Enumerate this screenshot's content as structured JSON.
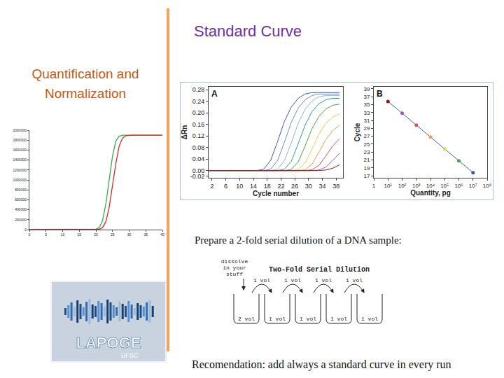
{
  "slide": {
    "title": "Standard Curve",
    "subtitle": [
      "Quantification and",
      "Normalization"
    ],
    "dilution": {
      "caption": "Prepare a 2-fold serial dilution of a DNA sample:",
      "note": [
        "dissolve",
        "in your",
        "stuff"
      ],
      "heading": "Two-Fold Serial Dilution",
      "transfers": [
        "1 vol",
        "1 vol",
        "1 vol",
        "1 vol"
      ],
      "tubes": [
        "2 vol",
        "1 vol",
        "1 vol",
        "1 vol",
        "1 vol"
      ]
    },
    "logo": {
      "name": "LAPOGE",
      "sub": "UFSC"
    },
    "recommendation": "Recomendation: add always a standard curve in every run"
  },
  "chart_data": [
    {
      "type": "line",
      "x": [
        0,
        1,
        2,
        3,
        4,
        5,
        6,
        7,
        8,
        9,
        10,
        11,
        12,
        13,
        14,
        15,
        16,
        17,
        18,
        19,
        20,
        21,
        22,
        23,
        24,
        25,
        26,
        27,
        28,
        29,
        30,
        31,
        32,
        33,
        34,
        35,
        36,
        37,
        38,
        39,
        40
      ],
      "series": [
        {
          "color": "#2fb34a",
          "values": [
            0,
            0,
            0,
            0,
            0,
            0,
            0,
            0,
            0,
            0,
            0,
            0,
            0,
            0,
            0,
            0,
            0,
            0,
            0,
            0,
            10000,
            40000,
            180000,
            520000,
            1000000,
            1480000,
            1780000,
            1880000,
            1900000,
            1900000,
            1900000,
            1900000,
            1900000,
            1900000,
            1900000,
            1900000,
            1900000,
            1900000,
            1900000,
            1900000,
            1900000
          ]
        },
        {
          "color": "#e0262b",
          "values": [
            0,
            0,
            0,
            0,
            0,
            0,
            0,
            0,
            0,
            0,
            0,
            0,
            0,
            0,
            0,
            0,
            0,
            0,
            0,
            0,
            0,
            10000,
            40000,
            160000,
            450000,
            880000,
            1330000,
            1680000,
            1840000,
            1890000,
            1900000,
            1900000,
            1900000,
            1900000,
            1900000,
            1900000,
            1900000,
            1900000,
            1900000,
            1900000,
            1900000
          ]
        }
      ],
      "xlim": [
        0,
        40
      ],
      "xticks": [
        0,
        5,
        10,
        15,
        20,
        25,
        30,
        35,
        40
      ],
      "ylim": [
        0,
        2000000
      ],
      "yticks": [
        0,
        200000,
        400000,
        600000,
        800000,
        1000000,
        1200000,
        1400000,
        1600000,
        1800000,
        2000000
      ],
      "grid": false
    },
    {
      "type": "line",
      "annotations": [
        "A"
      ],
      "xlabel": "Cycle number",
      "ylabel": "ΔRn",
      "x": [
        1,
        3,
        5,
        7,
        9,
        11,
        13,
        15,
        17,
        19,
        21,
        23,
        25,
        27,
        29,
        31,
        33,
        35,
        37,
        39
      ],
      "series": [
        {
          "color": "#3b5ba9",
          "values": [
            0,
            0,
            0,
            0,
            0,
            0,
            0,
            0,
            0.005,
            0.035,
            0.1,
            0.17,
            0.22,
            0.25,
            0.265,
            0.27,
            0.27,
            0.27,
            0.27,
            0.27
          ]
        },
        {
          "color": "#6a8fd0",
          "values": [
            0,
            0,
            0,
            0,
            0,
            0,
            0,
            0,
            0,
            0.005,
            0.034,
            0.098,
            0.167,
            0.216,
            0.245,
            0.26,
            0.265,
            0.265,
            0.265,
            0.265
          ]
        },
        {
          "color": "#8fb3e0",
          "values": [
            0,
            0,
            0,
            0,
            0,
            0,
            0,
            0,
            0,
            0,
            0.005,
            0.034,
            0.096,
            0.164,
            0.212,
            0.241,
            0.255,
            0.26,
            0.26,
            0.26
          ]
        },
        {
          "color": "#2aa198",
          "values": [
            0,
            0,
            0,
            0,
            0,
            0,
            0,
            0,
            0,
            0,
            0,
            0.005,
            0.032,
            0.093,
            0.157,
            0.204,
            0.231,
            0.245,
            0.25,
            0.25
          ]
        },
        {
          "color": "#44aa44",
          "values": [
            0,
            0,
            0,
            0,
            0,
            0,
            0,
            0,
            0,
            0,
            0,
            0,
            0.004,
            0.03,
            0.085,
            0.145,
            0.187,
            0.213,
            0.226,
            0.23
          ]
        },
        {
          "color": "#e8d44d",
          "values": [
            0,
            0,
            0,
            0,
            0,
            0,
            0,
            0,
            0,
            0,
            0,
            0,
            0,
            0.004,
            0.026,
            0.074,
            0.126,
            0.163,
            0.185,
            0.196
          ]
        },
        {
          "color": "#f0a040",
          "values": [
            0,
            0,
            0,
            0,
            0,
            0,
            0,
            0,
            0,
            0,
            0,
            0,
            0,
            0,
            0.003,
            0.022,
            0.063,
            0.107,
            0.138,
            0.157
          ]
        },
        {
          "color": "#d9534f",
          "values": [
            0,
            0,
            0,
            0,
            0,
            0,
            0,
            0,
            0,
            0,
            0,
            0,
            0,
            0,
            0,
            0.003,
            0.018,
            0.05,
            0.085,
            0.11
          ]
        },
        {
          "color": "#9b59b6",
          "values": [
            0,
            0,
            0,
            0,
            0,
            0,
            0,
            0,
            0,
            0,
            0,
            0,
            0,
            0,
            0,
            0,
            0.002,
            0.012,
            0.035,
            0.06
          ]
        },
        {
          "color": "#8b1a1a",
          "values": [
            0,
            0,
            0,
            0,
            0,
            0,
            0,
            0,
            0,
            0,
            0,
            0,
            0,
            0,
            0,
            0,
            0,
            0.002,
            0.008,
            0.02
          ]
        }
      ],
      "xlim": [
        1,
        40
      ],
      "xticks": [
        2,
        6,
        10,
        14,
        18,
        22,
        26,
        30,
        34,
        38
      ],
      "ylim": [
        -0.025,
        0.29
      ],
      "yticks": [
        -0.02,
        {
          "value": 0,
          "label": "0.00"
        },
        0.04,
        0.08,
        0.12,
        0.16,
        {
          "value": 0.2,
          "label": "0.20"
        },
        0.24,
        0.28
      ],
      "grid": false
    },
    {
      "type": "line",
      "annotations": [
        "B"
      ],
      "xlabel": "Quantity, pg",
      "ylabel": "Cycle",
      "log": "x",
      "x": [
        10,
        100,
        1000,
        10000,
        100000,
        1000000,
        10000000
      ],
      "series": [
        {
          "color": "#4a5f8a",
          "marker": "circle",
          "colors": [
            "#8b1a1a",
            "#9b59b6",
            "#d9534f",
            "#f0a040",
            "#e8d44d",
            "#44aa44",
            "#3b5ba9"
          ],
          "values": [
            35.8,
            32.8,
            29.8,
            26.8,
            23.8,
            20.8,
            17.8
          ]
        }
      ],
      "xlim": [
        1,
        100000000
      ],
      "xticks": [
        1,
        {
          "value": 10,
          "label": "10¹"
        },
        {
          "value": 100,
          "label": "10²"
        },
        {
          "value": 1000,
          "label": "10³"
        },
        {
          "value": 10000,
          "label": "10⁴"
        },
        {
          "value": 100000,
          "label": "10⁵"
        },
        {
          "value": 1000000,
          "label": "10⁶"
        },
        {
          "value": 10000000,
          "label": "10⁷"
        },
        {
          "value": 100000000,
          "label": "10⁸"
        }
      ],
      "ylim": [
        16.5,
        39.5
      ],
      "yticks": [
        17,
        19,
        21,
        23,
        25,
        27,
        29,
        31,
        33,
        35,
        37,
        39
      ],
      "grid": false
    }
  ]
}
